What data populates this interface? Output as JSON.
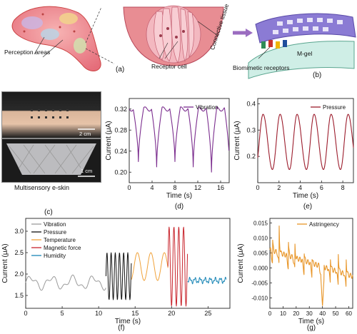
{
  "figure": {
    "panel_a": {
      "caption": "(a)",
      "perception_label": "Perception areas",
      "receptor_label": "Receptor cell",
      "tissue_label": "Connective tissue"
    },
    "panel_b": {
      "caption": "(b)",
      "mgel_label": "M-gel",
      "receptors_label": "Biomimetic receptors"
    },
    "panel_c": {
      "caption": "(c)",
      "scale_top": "2 cm",
      "scale_bottom": "1 cm",
      "title": "Multisensory e-skin"
    },
    "colors": {
      "vibration": "#7b2d8e",
      "pressure": "#9c1c2c",
      "temperature": "#f0a23a",
      "magnetic": "#c8242c",
      "humidity": "#1a86b6",
      "vibration_f": "#9a9a9a",
      "pressure_f": "#111111",
      "astringency": "#e89527"
    }
  },
  "chart_data": [
    {
      "panel": "(d)",
      "type": "line",
      "xlabel": "Time (s)",
      "ylabel": "Current (μA)",
      "xlim": [
        0,
        17.5
      ],
      "ylim": [
        0.18,
        0.34
      ],
      "xticks": [
        "0",
        "4",
        "8",
        "12",
        "16"
      ],
      "yticks": [
        "0.20",
        "0.24",
        "0.28",
        "0.32"
      ],
      "series": [
        {
          "name": "Vibration",
          "high": 0.32,
          "lows": [
            0.22,
            0.21,
            0.22,
            0.21,
            0.2,
            0.2
          ],
          "period_s": 3.2,
          "first_dip_s": 1.6
        }
      ]
    },
    {
      "panel": "(e)",
      "type": "line",
      "xlabel": "Time (s)",
      "ylabel": "Current (μA)",
      "xlim": [
        0,
        9
      ],
      "ylim": [
        0.1,
        0.42
      ],
      "xticks": [
        "0",
        "2",
        "4",
        "6",
        "8"
      ],
      "yticks": [
        "0.2",
        "0.3",
        "0.4"
      ],
      "series": [
        {
          "name": "Pressure",
          "peak": 0.36,
          "trough": 0.15,
          "period_s": 1.6,
          "first_peak_s": 0.5
        }
      ]
    },
    {
      "panel": "(f)",
      "type": "line",
      "xlabel": "Time (s)",
      "ylabel": "Current (μA)",
      "xlim": [
        0,
        28
      ],
      "ylim": [
        1.2,
        3.3
      ],
      "xticks": [
        "0",
        "5",
        "10",
        "15",
        "20",
        "25"
      ],
      "yticks": [
        "1.5",
        "2.0",
        "2.5",
        "3.0"
      ],
      "series": [
        {
          "name": "Vibration",
          "x_range": [
            0,
            11
          ],
          "level": 1.8
        },
        {
          "name": "Pressure",
          "x_range": [
            11,
            14.5
          ],
          "min": 1.4,
          "max": 2.5
        },
        {
          "name": "Temperature",
          "x_range": [
            14.5,
            19.5
          ],
          "min": 1.85,
          "max": 2.5
        },
        {
          "name": "Magnetic force",
          "x_range": [
            19.5,
            22.2
          ],
          "min": 1.25,
          "max": 3.1
        },
        {
          "name": "Humidity",
          "x_range": [
            22.2,
            27.5
          ],
          "level": 1.85
        }
      ]
    },
    {
      "panel": "(g)",
      "type": "line",
      "xlabel": "Time (s)",
      "ylabel": "Current (μA)",
      "xlim": [
        0,
        63
      ],
      "ylim": [
        -0.0135,
        0.0165
      ],
      "xticks": [
        "0",
        "10",
        "20",
        "30",
        "40",
        "50",
        "60"
      ],
      "yticks": [
        "-0.010",
        "-0.005",
        "0.000",
        "0.005",
        "0.010",
        "0.015"
      ],
      "series": [
        {
          "name": "Astringency",
          "spikes": [
            {
              "x": 2,
              "y": 0.01
            },
            {
              "x": 7,
              "y": 0.015
            },
            {
              "x": 14,
              "y": 0.01
            },
            {
              "x": 19,
              "y": 0.008
            },
            {
              "x": 26,
              "y": 0.006
            },
            {
              "x": 32,
              "y": 0.004
            },
            {
              "x": 39,
              "y": 0.006
            },
            {
              "x": 46,
              "y": 0.004
            },
            {
              "x": 52,
              "y": 0.006
            },
            {
              "x": 58,
              "y": 0.004
            }
          ],
          "min": -0.013
        }
      ]
    }
  ]
}
